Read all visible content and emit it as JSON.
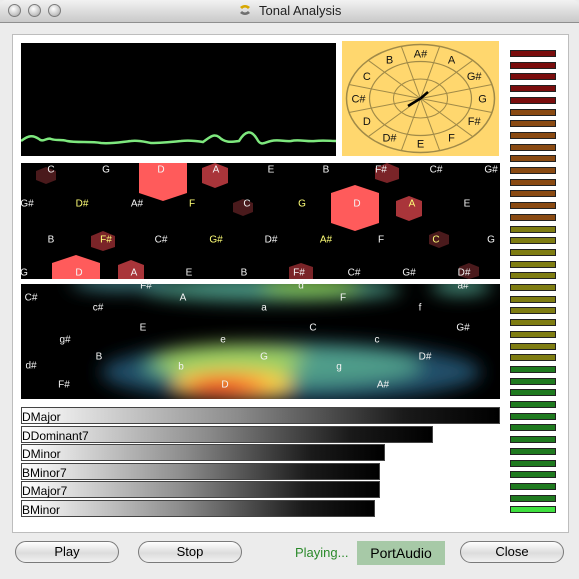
{
  "window": {
    "title": "Tonal Analysis"
  },
  "circle": {
    "notes": [
      "A#",
      "A",
      "G#",
      "G",
      "F#",
      "F",
      "E",
      "D#",
      "D",
      "C#",
      "C",
      "B"
    ]
  },
  "lattice": {
    "rows": [
      [
        "C",
        "G",
        "D",
        "A",
        "E",
        "B",
        "F#",
        "C#",
        "G#"
      ],
      [
        "G#",
        "D#",
        "A#",
        "F",
        "C",
        "G",
        "D",
        "A",
        "E"
      ],
      [
        "B",
        "F#",
        "C#",
        "G#",
        "D#",
        "A#",
        "F",
        "C",
        "G"
      ],
      [
        "G",
        "D",
        "A",
        "E",
        "B",
        "F#",
        "C#",
        "G#",
        "D#"
      ]
    ]
  },
  "keymap": {
    "labels": [
      "F#",
      "d",
      "a#",
      "C#",
      "A",
      "F",
      "c#",
      "a",
      "f",
      "E",
      "C",
      "G#",
      "g#",
      "e",
      "c",
      "B",
      "G",
      "D#",
      "d#",
      "b",
      "g",
      "F#",
      "D",
      "A#"
    ]
  },
  "chords": [
    {
      "label": "DMajor",
      "value": 1.0
    },
    {
      "label": "DDominant7",
      "value": 0.86
    },
    {
      "label": "DMinor",
      "value": 0.76
    },
    {
      "label": "BMinor7",
      "value": 0.75
    },
    {
      "label": "DMajor7",
      "value": 0.75
    },
    {
      "label": "BMinor",
      "value": 0.74
    }
  ],
  "meter": {
    "level": 0.03
  },
  "buttons": {
    "play": "Play",
    "stop": "Stop",
    "close": "Close"
  },
  "status": {
    "text": "Playing...",
    "brand": "PortAudio"
  },
  "colors": {
    "waveform": "#7ee87e",
    "hotspot": "#ff5b5b",
    "accent_status": "#2a8a2a"
  }
}
